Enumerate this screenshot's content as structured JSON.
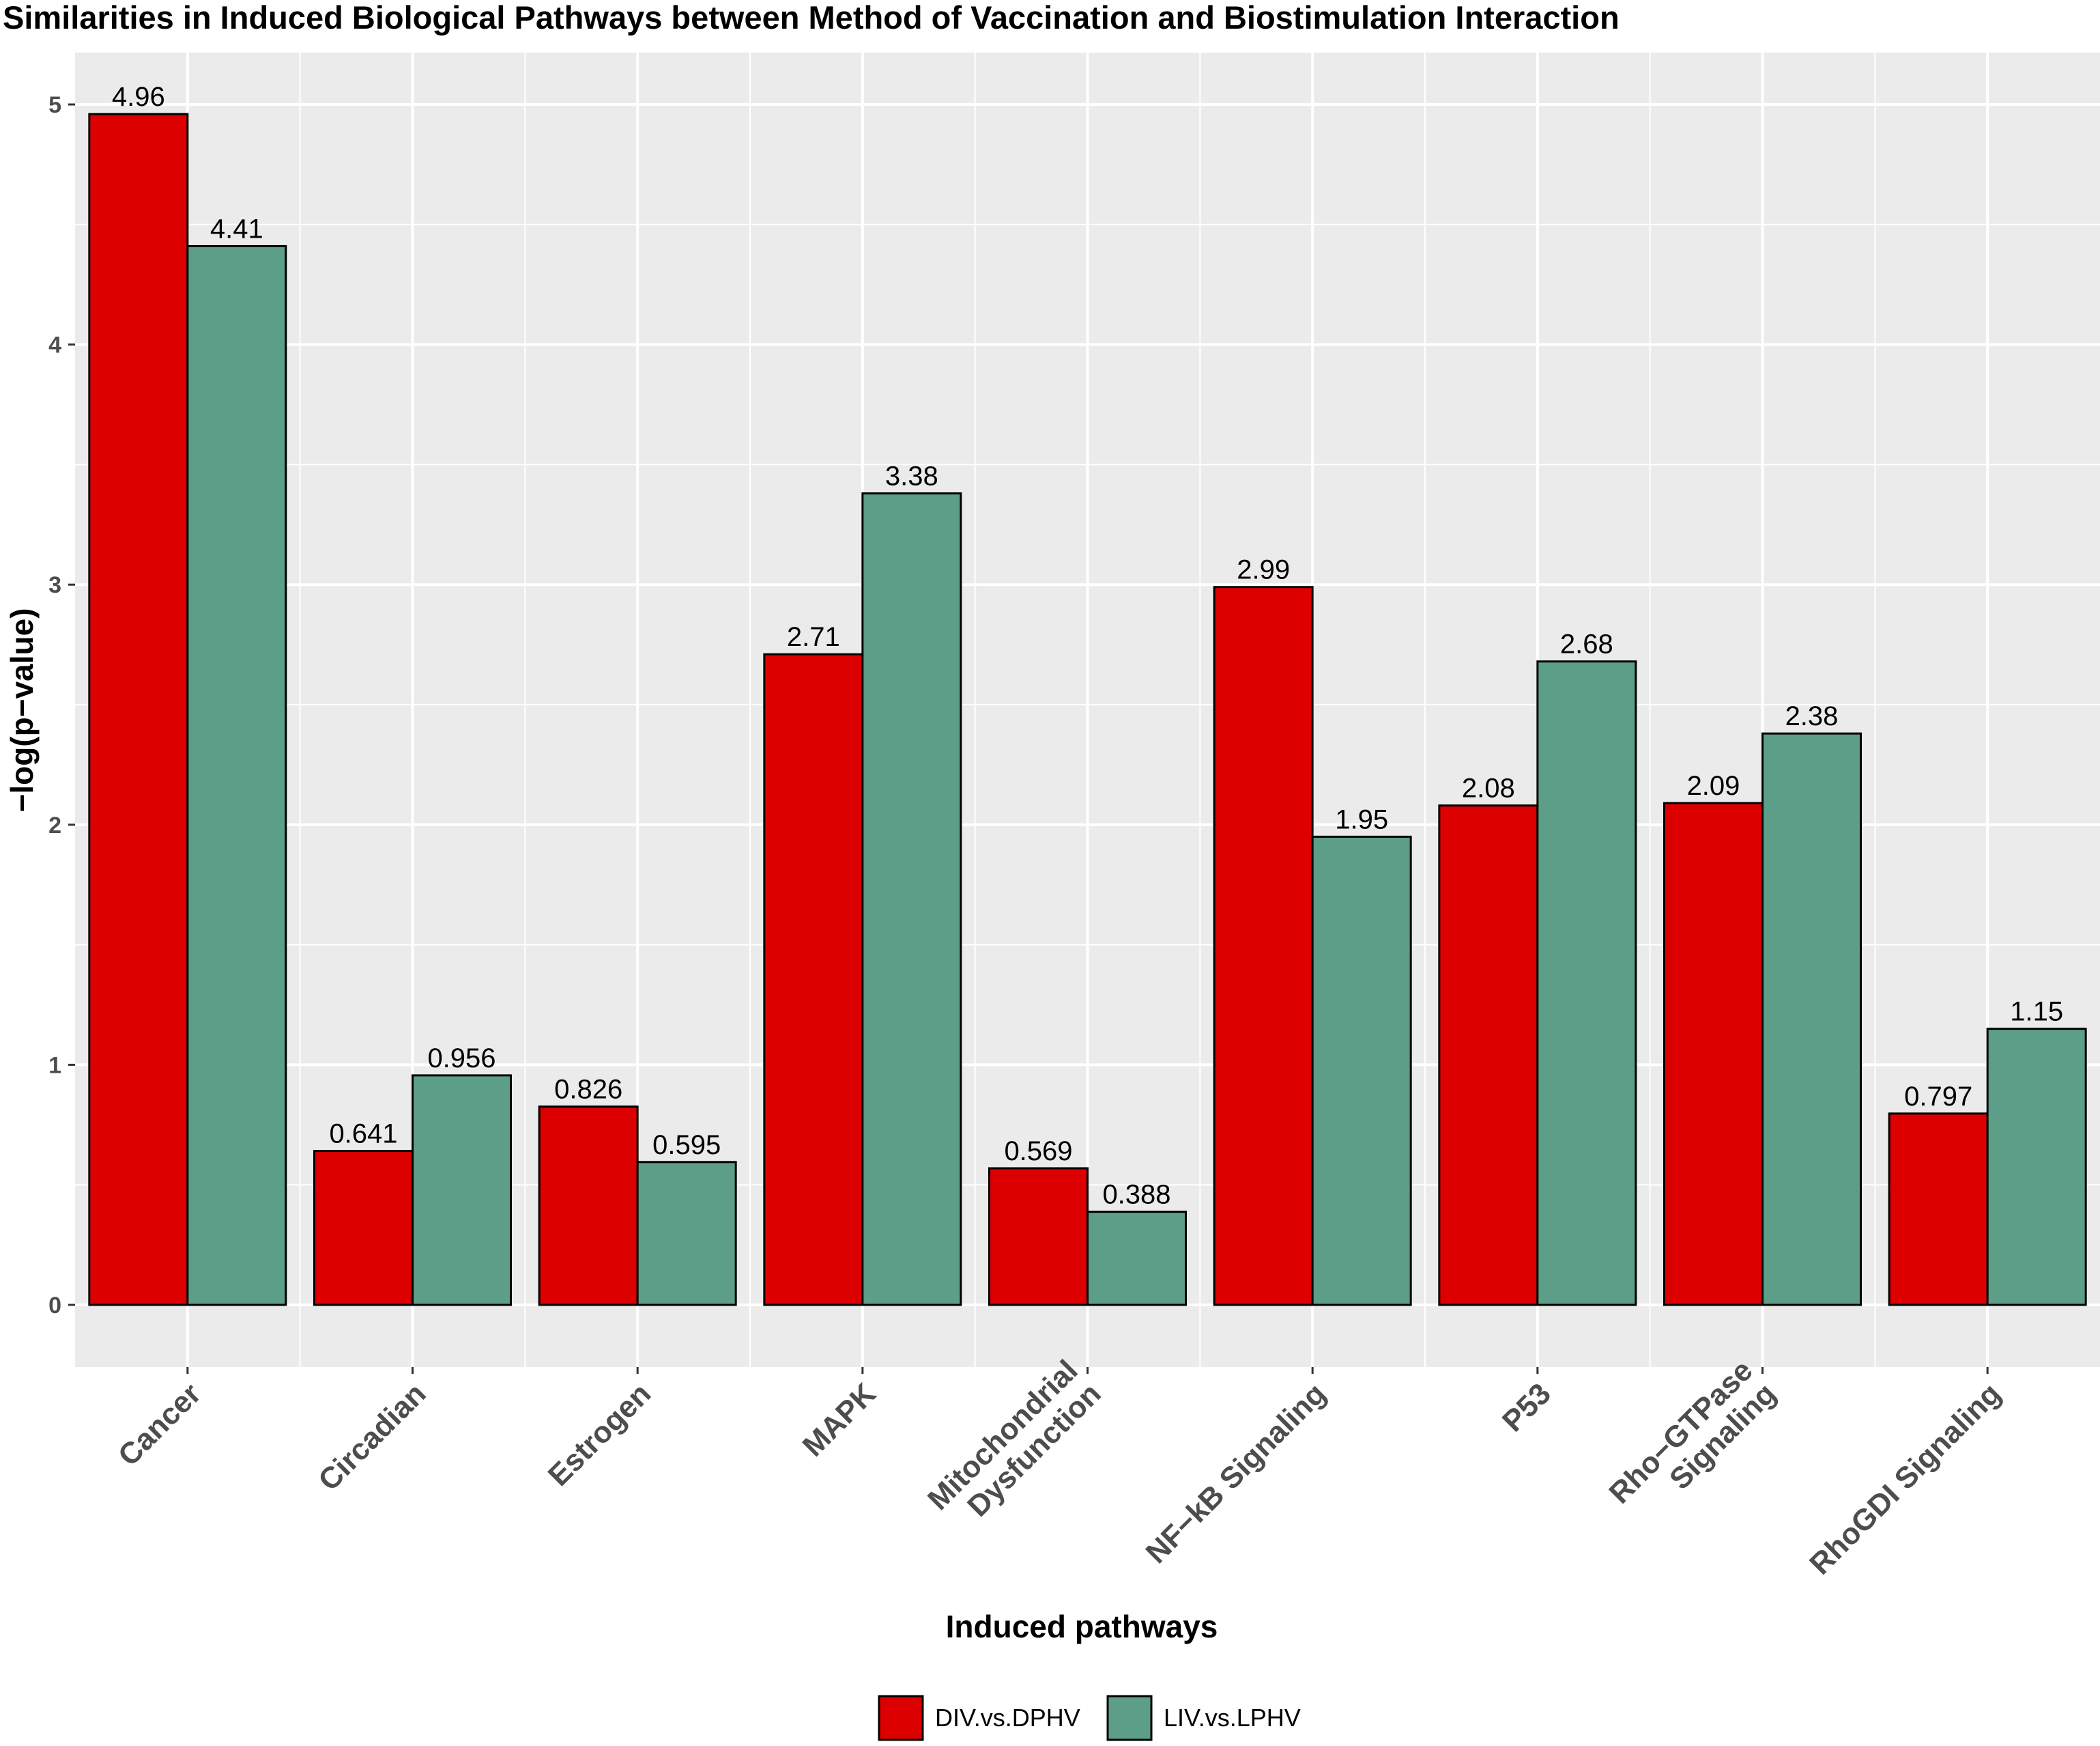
{
  "chart_data": {
    "type": "bar",
    "title": "Similarities in Induced Biological Pathways between Method of Vaccination and Biostimulation Interaction",
    "xlabel": "Induced pathways",
    "ylabel": "−log(p−value)",
    "ylim": [
      -0.25,
      5.2
    ],
    "yticks": [
      0,
      1,
      2,
      3,
      4,
      5
    ],
    "grid": true,
    "legend_position": "bottom",
    "categories": [
      [
        "Cancer"
      ],
      [
        "Circadian"
      ],
      [
        "Estrogen"
      ],
      [
        "MAPK"
      ],
      [
        "Mitochondrial",
        "Dysfunction"
      ],
      [
        "NF−kB Signaling"
      ],
      [
        "P53"
      ],
      [
        "Rho−GTPase",
        "Signaling"
      ],
      [
        "RhoGDI Signaling"
      ]
    ],
    "series": [
      {
        "name": "DIV.vs.DPHV",
        "color": "#dd0000",
        "values": [
          4.96,
          0.641,
          0.826,
          2.71,
          0.569,
          2.99,
          2.08,
          2.09,
          0.797
        ],
        "labels": [
          "4.96",
          "0.641",
          "0.826",
          "2.71",
          "0.569",
          "2.99",
          "2.08",
          "2.09",
          "0.797"
        ]
      },
      {
        "name": "LIV.vs.LPHV",
        "color": "#5c9e87",
        "values": [
          4.41,
          0.956,
          0.595,
          3.38,
          0.388,
          1.95,
          2.68,
          2.38,
          1.15
        ],
        "labels": [
          "4.41",
          "0.956",
          "0.595",
          "3.38",
          "0.388",
          "1.95",
          "2.68",
          "2.38",
          "1.15"
        ]
      }
    ]
  }
}
